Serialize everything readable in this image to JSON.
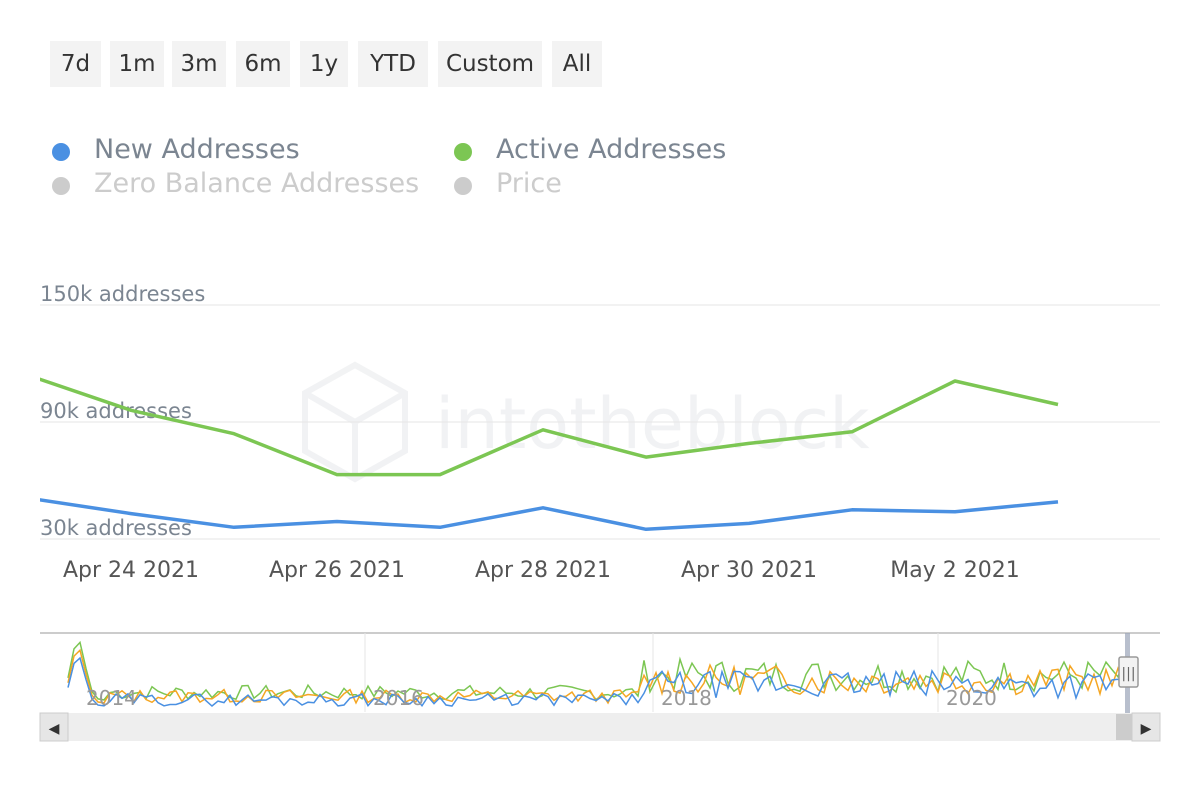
{
  "range_selector": {
    "buttons": [
      "7d",
      "1m",
      "3m",
      "6m",
      "1y",
      "YTD",
      "Custom",
      "All"
    ]
  },
  "legend": {
    "items": [
      {
        "label": "New Addresses",
        "color": "#4a90e2",
        "active": true
      },
      {
        "label": "Active Addresses",
        "color": "#7cc653",
        "active": true
      },
      {
        "label": "Zero Balance Addresses",
        "color": "#cccccc",
        "active": false
      },
      {
        "label": "Price",
        "color": "#cccccc",
        "active": false
      }
    ]
  },
  "watermark": "intotheblock",
  "chart_data": {
    "type": "line",
    "x": [
      "Apr 23 2021",
      "Apr 24 2021",
      "Apr 25 2021",
      "Apr 26 2021",
      "Apr 27 2021",
      "Apr 28 2021",
      "Apr 29 2021",
      "Apr 30 2021",
      "May 1 2021",
      "May 2 2021",
      "May 3 2021"
    ],
    "x_tick_labels": [
      "Apr 24 2021",
      "Apr 26 2021",
      "Apr 28 2021",
      "Apr 30 2021",
      "May 2 2021"
    ],
    "y_tick_labels": [
      "150k addresses",
      "90k addresses",
      "30k addresses"
    ],
    "y_ticks": [
      150000,
      90000,
      30000
    ],
    "ylim": [
      30000,
      150000
    ],
    "series": [
      {
        "name": "New Addresses",
        "color": "#4a90e2",
        "values": [
          51000,
          43000,
          36000,
          39000,
          36000,
          46000,
          35000,
          38000,
          45000,
          44000,
          49000
        ]
      },
      {
        "name": "Active Addresses",
        "color": "#7cc653",
        "values": [
          114000,
          96000,
          84000,
          63000,
          63000,
          86000,
          72000,
          79000,
          85000,
          111000,
          99000
        ]
      }
    ],
    "grid": true,
    "legend_position": "top-left"
  },
  "navigator": {
    "year_labels": [
      "2014",
      "2016",
      "2018",
      "2020"
    ],
    "scroll_left_label": "◀",
    "scroll_right_label": "▶",
    "handle_label": "|||"
  }
}
